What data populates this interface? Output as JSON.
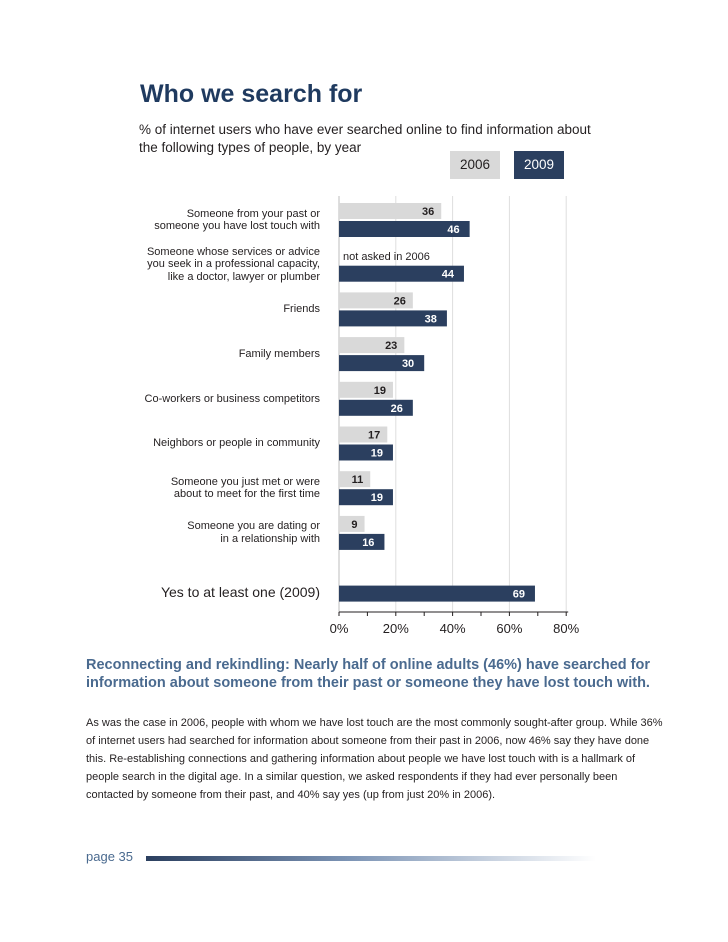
{
  "chart_data": {
    "type": "bar",
    "orientation": "horizontal",
    "title": "Who we search for",
    "subtitle": "% of internet users who have ever searched online to find information about the following types of people, by year",
    "xlim": [
      0,
      80
    ],
    "x_ticks": [
      "0%",
      "20%",
      "40%",
      "60%",
      "80%"
    ],
    "x_tick_values": [
      0,
      20,
      40,
      60,
      80
    ],
    "legend": [
      "2006",
      "2009"
    ],
    "categories": [
      [
        "Someone from your past or",
        "someone you have lost touch with"
      ],
      [
        "Someone whose services or advice",
        "you seek in a professional capacity,",
        "like a doctor, lawyer or plumber"
      ],
      [
        "Friends"
      ],
      [
        "Family members"
      ],
      [
        "Co-workers or business competitors"
      ],
      [
        "Neighbors or people in community"
      ],
      [
        "Someone you just met or were",
        "about to meet for the first time"
      ],
      [
        "Someone you are dating or",
        "in a relationship with"
      ],
      [
        "Yes to at least one (2009)"
      ]
    ],
    "series": [
      {
        "name": "2006",
        "color": "#d9d9d9",
        "values": [
          36,
          null,
          26,
          23,
          19,
          17,
          11,
          9,
          null
        ]
      },
      {
        "name": "2009",
        "color": "#2b3f5f",
        "values": [
          46,
          44,
          38,
          30,
          26,
          19,
          19,
          16,
          69
        ]
      }
    ],
    "annotations": [
      "not asked in 2006"
    ]
  },
  "text": {
    "heading": "Reconnecting and rekindling: Nearly half of online adults (46%) have searched for information about someone from their past or someone they have lost touch with.",
    "body": "As was the case in 2006, people with whom we have lost touch are the most commonly sought-after group. While 36% of internet users had searched for information about someone from their past in 2006, now 46% say they have done this. Re-establishing connections and gathering information about people we have lost touch with is a hallmark of people search in the digital age. In a similar question, we asked respondents if they had ever personally been contacted by someone from their past, and 40% say yes (up from just 20% in 2006).",
    "page": "page 35"
  }
}
